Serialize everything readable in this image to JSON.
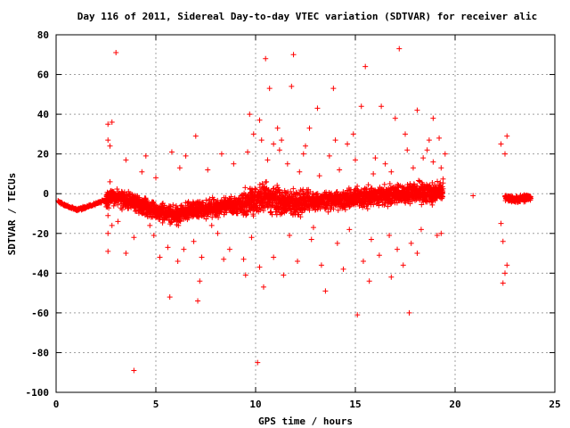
{
  "chart_data": {
    "type": "scatter",
    "title": "Day 116 of 2011, Sidereal Day-to-day VTEC variation (SDTVAR) for receiver alic",
    "xlabel": "GPS time / hours",
    "ylabel": "SDTVAR / TECUs",
    "xlim": [
      0,
      25
    ],
    "ylim": [
      -100,
      80
    ],
    "xticks": [
      0,
      5,
      10,
      15,
      20,
      25
    ],
    "yticks": [
      -100,
      -80,
      -60,
      -40,
      -20,
      0,
      20,
      40,
      60,
      80
    ],
    "xtick_labels": [
      "0",
      "5",
      "10",
      "15",
      "20",
      "25"
    ],
    "ytick_labels": [
      "-100",
      "-80",
      "-60",
      "-40",
      "-20",
      "0",
      "20",
      "40",
      "60",
      "80"
    ],
    "grid": true,
    "marker": "+",
    "color": "#ff0000",
    "baseline_trend": [
      {
        "x": 0.1,
        "y": -4
      },
      {
        "x": 0.5,
        "y": -6
      },
      {
        "x": 1.0,
        "y": -8
      },
      {
        "x": 1.5,
        "y": -7
      },
      {
        "x": 2.0,
        "y": -5
      },
      {
        "x": 2.5,
        "y": -3
      },
      {
        "x": 3.0,
        "y": -2
      },
      {
        "x": 3.5,
        "y": -3
      },
      {
        "x": 4.0,
        "y": -5
      },
      {
        "x": 4.5,
        "y": -7
      },
      {
        "x": 5.0,
        "y": -9
      },
      {
        "x": 5.5,
        "y": -10
      },
      {
        "x": 6.0,
        "y": -11
      },
      {
        "x": 6.5,
        "y": -9
      },
      {
        "x": 7.0,
        "y": -8
      },
      {
        "x": 7.5,
        "y": -8
      },
      {
        "x": 8.0,
        "y": -7
      },
      {
        "x": 8.5,
        "y": -6
      },
      {
        "x": 9.0,
        "y": -6
      },
      {
        "x": 9.5,
        "y": -4
      },
      {
        "x": 10.0,
        "y": -3
      },
      {
        "x": 10.5,
        "y": -2
      },
      {
        "x": 11.0,
        "y": -3
      },
      {
        "x": 11.5,
        "y": -4
      },
      {
        "x": 12.0,
        "y": -5
      },
      {
        "x": 12.5,
        "y": -4
      },
      {
        "x": 13.0,
        "y": -4
      },
      {
        "x": 13.5,
        "y": -3
      },
      {
        "x": 14.0,
        "y": -3
      },
      {
        "x": 14.5,
        "y": -3
      },
      {
        "x": 15.0,
        "y": -2
      },
      {
        "x": 15.5,
        "y": -2
      },
      {
        "x": 16.0,
        "y": -1
      },
      {
        "x": 16.5,
        "y": -1
      },
      {
        "x": 17.0,
        "y": 0
      },
      {
        "x": 17.5,
        "y": 0
      },
      {
        "x": 18.0,
        "y": 1
      },
      {
        "x": 18.5,
        "y": 0
      },
      {
        "x": 19.0,
        "y": 1
      },
      {
        "x": 19.4,
        "y": 2
      },
      {
        "x": 22.5,
        "y": -2
      },
      {
        "x": 23.0,
        "y": -3
      },
      {
        "x": 23.5,
        "y": -2
      },
      {
        "x": 23.8,
        "y": -2
      }
    ],
    "gaps": [
      {
        "from": 19.6,
        "to": 22.3
      }
    ],
    "points": [
      [
        3.0,
        71
      ],
      [
        15.5,
        64
      ],
      [
        17.2,
        73
      ],
      [
        10.5,
        68
      ],
      [
        11.9,
        70
      ],
      [
        10.7,
        53
      ],
      [
        11.8,
        54
      ],
      [
        13.9,
        53
      ],
      [
        13.1,
        43
      ],
      [
        15.3,
        44
      ],
      [
        16.3,
        44
      ],
      [
        17.0,
        38
      ],
      [
        18.1,
        42
      ],
      [
        18.9,
        38
      ],
      [
        9.7,
        40
      ],
      [
        10.2,
        37
      ],
      [
        12.7,
        33
      ],
      [
        17.5,
        30
      ],
      [
        14.9,
        30
      ],
      [
        19.2,
        28
      ],
      [
        2.6,
        35
      ],
      [
        2.8,
        36
      ],
      [
        2.7,
        24
      ],
      [
        2.6,
        27
      ],
      [
        7.0,
        29
      ],
      [
        5.8,
        21
      ],
      [
        4.5,
        19
      ],
      [
        3.5,
        17
      ],
      [
        6.5,
        19
      ],
      [
        8.3,
        20
      ],
      [
        9.6,
        21
      ],
      [
        11.2,
        22
      ],
      [
        12.4,
        20
      ],
      [
        13.7,
        19
      ],
      [
        16.0,
        18
      ],
      [
        18.6,
        22
      ],
      [
        19.5,
        20
      ],
      [
        22.3,
        25
      ],
      [
        22.6,
        29
      ],
      [
        22.5,
        20
      ],
      [
        22.4,
        -24
      ],
      [
        22.5,
        -40
      ],
      [
        22.4,
        -45
      ],
      [
        22.6,
        -36
      ],
      [
        22.3,
        -15
      ],
      [
        3.9,
        -89
      ],
      [
        10.1,
        -85
      ],
      [
        15.1,
        -61
      ],
      [
        17.7,
        -60
      ],
      [
        5.7,
        -52
      ],
      [
        7.1,
        -54
      ],
      [
        13.5,
        -49
      ],
      [
        16.8,
        -42
      ],
      [
        15.7,
        -44
      ],
      [
        14.4,
        -38
      ],
      [
        7.2,
        -44
      ],
      [
        9.5,
        -41
      ],
      [
        10.4,
        -47
      ],
      [
        11.4,
        -41
      ],
      [
        12.1,
        -34
      ],
      [
        5.2,
        -32
      ],
      [
        6.1,
        -34
      ],
      [
        3.5,
        -30
      ],
      [
        2.6,
        -29
      ],
      [
        7.3,
        -32
      ],
      [
        8.7,
        -28
      ],
      [
        10.9,
        -32
      ],
      [
        13.3,
        -36
      ],
      [
        15.4,
        -34
      ],
      [
        16.2,
        -31
      ],
      [
        17.1,
        -28
      ],
      [
        17.4,
        -36
      ],
      [
        19.1,
        -21
      ],
      [
        19.3,
        -20
      ],
      [
        18.3,
        -18
      ],
      [
        14.7,
        -18
      ],
      [
        12.9,
        -17
      ],
      [
        9.8,
        -22
      ],
      [
        8.1,
        -20
      ],
      [
        6.9,
        -24
      ],
      [
        4.9,
        -21
      ],
      [
        3.9,
        -22
      ],
      [
        2.8,
        -16
      ],
      [
        2.6,
        -20
      ],
      [
        3.1,
        -14
      ],
      [
        4.3,
        11
      ],
      [
        5.0,
        8
      ],
      [
        6.2,
        13
      ],
      [
        7.6,
        12
      ],
      [
        8.9,
        15
      ],
      [
        10.6,
        17
      ],
      [
        11.6,
        15
      ],
      [
        12.2,
        11
      ],
      [
        13.2,
        9
      ],
      [
        14.2,
        12
      ],
      [
        15.9,
        10
      ],
      [
        16.8,
        11
      ],
      [
        17.9,
        13
      ],
      [
        18.9,
        16
      ],
      [
        19.3,
        13
      ],
      [
        2.6,
        -11
      ],
      [
        2.7,
        6
      ],
      [
        9.9,
        30
      ],
      [
        10.3,
        27
      ],
      [
        10.9,
        25
      ],
      [
        11.1,
        33
      ],
      [
        11.3,
        27
      ],
      [
        12.5,
        24
      ],
      [
        14.0,
        27
      ],
      [
        14.6,
        25
      ],
      [
        15.0,
        17
      ],
      [
        16.5,
        15
      ],
      [
        17.6,
        22
      ],
      [
        18.4,
        18
      ],
      [
        18.7,
        27
      ],
      [
        9.4,
        -33
      ],
      [
        10.2,
        -37
      ],
      [
        11.7,
        -21
      ],
      [
        12.8,
        -23
      ],
      [
        14.1,
        -25
      ],
      [
        15.8,
        -23
      ],
      [
        16.7,
        -21
      ],
      [
        17.8,
        -25
      ],
      [
        18.1,
        -30
      ],
      [
        8.4,
        -33
      ],
      [
        6.4,
        -28
      ],
      [
        5.6,
        -27
      ],
      [
        4.7,
        -16
      ],
      [
        7.8,
        -16
      ],
      [
        20.9,
        -1
      ]
    ]
  }
}
